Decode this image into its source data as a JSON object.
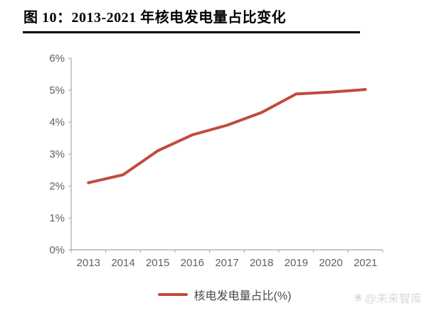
{
  "header": {
    "title": "图 10：2013-2021 年核电发电量占比变化"
  },
  "colors": {
    "accent": "#C14B3E",
    "axis": "#A6A6A6",
    "tick_label": "#616161",
    "title": "#000000",
    "legend_text": "#494949",
    "watermark": "#D9D9D9",
    "background": "#FFFFFF"
  },
  "chart_data": {
    "type": "line",
    "title": "2013-2021 年核电发电量占比变化",
    "categories": [
      "2013",
      "2014",
      "2015",
      "2016",
      "2017",
      "2018",
      "2019",
      "2020",
      "2021"
    ],
    "series": [
      {
        "name": "核电发电量占比(%)",
        "color": "#C14B3E",
        "values": [
          2.1,
          2.35,
          3.1,
          3.6,
          3.9,
          4.3,
          4.88,
          4.94,
          5.02
        ]
      }
    ],
    "xlabel": "",
    "ylabel": "",
    "ylim": [
      0,
      6
    ],
    "y_tick_step": 1,
    "y_tick_suffix": "%",
    "grid": false,
    "legend_position": "bottom"
  },
  "watermark": {
    "icon": "flower-icon",
    "icon_glyph": "❀",
    "text": "@未来智库"
  }
}
